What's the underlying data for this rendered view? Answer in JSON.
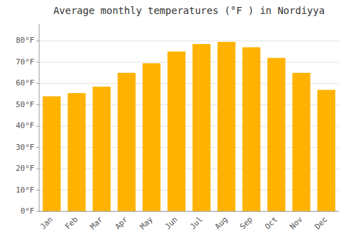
{
  "chart_data": {
    "type": "bar",
    "title": "Average monthly temperatures (°F ) in Nordiyya",
    "categories": [
      "Jan",
      "Feb",
      "Mar",
      "Apr",
      "May",
      "Jun",
      "Jul",
      "Aug",
      "Sep",
      "Oct",
      "Nov",
      "Dec"
    ],
    "values": [
      54,
      55.5,
      58.5,
      65,
      69.5,
      75,
      78.5,
      79.5,
      77,
      72,
      65,
      57
    ],
    "color": "#FFB300",
    "ylim": [
      0,
      88
    ],
    "yticks": [
      {
        "value": 0,
        "label": "0°F"
      },
      {
        "value": 10,
        "label": "10°F"
      },
      {
        "value": 20,
        "label": "20°F"
      },
      {
        "value": 30,
        "label": "30°F"
      },
      {
        "value": 40,
        "label": "40°F"
      },
      {
        "value": 50,
        "label": "50°F"
      },
      {
        "value": 60,
        "label": "60°F"
      },
      {
        "value": 70,
        "label": "70°F"
      },
      {
        "value": 80,
        "label": "80°F"
      }
    ],
    "grid": true
  }
}
